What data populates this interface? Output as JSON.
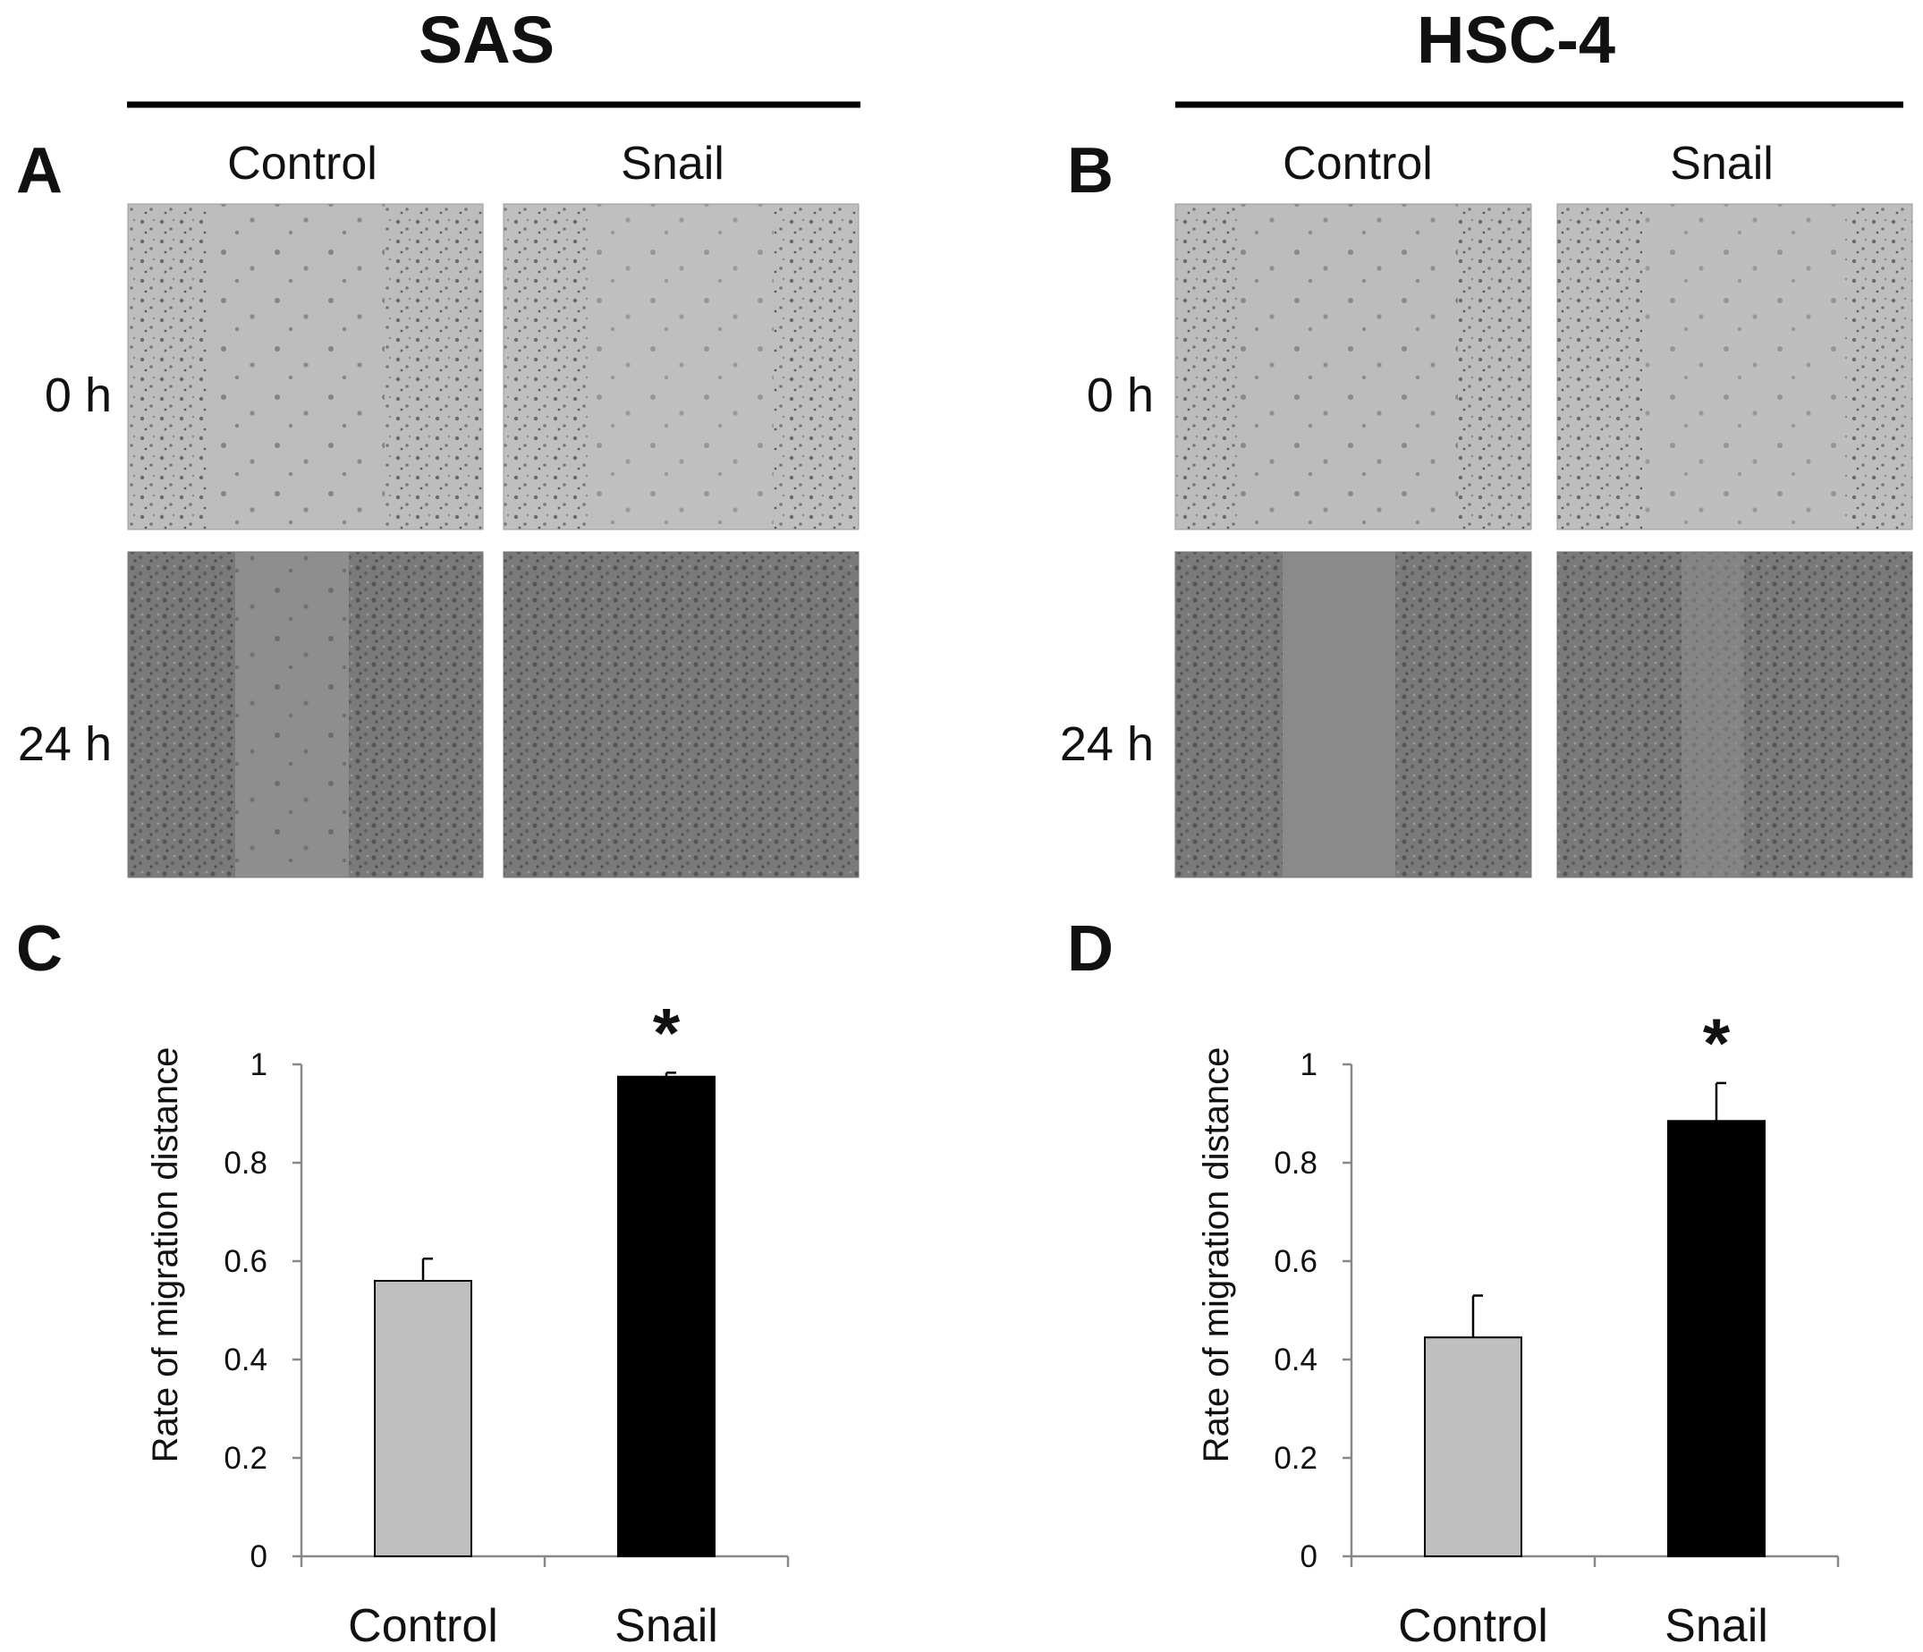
{
  "figure": {
    "groups": [
      {
        "panel_label": "A",
        "title": "SAS",
        "columns": [
          "Control",
          "Snail"
        ],
        "rows": [
          "0 h",
          "24 h"
        ]
      },
      {
        "panel_label": "B",
        "title": "HSC-4",
        "columns": [
          "Control",
          "Snail"
        ],
        "rows": [
          "0 h",
          "24 h"
        ]
      }
    ]
  },
  "chart_data": [
    {
      "panel_label": "C",
      "type": "bar",
      "categories": [
        "Control",
        "Snail"
      ],
      "values": [
        0.56,
        0.975
      ],
      "errors": [
        0.045,
        0.008
      ],
      "colors": [
        "#bfbfbf",
        "#000000"
      ],
      "significance": [
        "",
        "*"
      ],
      "ylabel": "Rate of migration distance",
      "xlabel": "",
      "ylim": [
        0,
        1
      ],
      "yticks": [
        0,
        0.2,
        0.4,
        0.6,
        0.8,
        1
      ],
      "ytick_labels": [
        "0",
        "0.2",
        "0.4",
        "0.6",
        "0.8",
        "1"
      ],
      "grid": false,
      "legend": "none"
    },
    {
      "panel_label": "D",
      "type": "bar",
      "categories": [
        "Control",
        "Snail"
      ],
      "values": [
        0.445,
        0.885
      ],
      "errors": [
        0.085,
        0.077
      ],
      "colors": [
        "#bfbfbf",
        "#000000"
      ],
      "significance": [
        "",
        "*"
      ],
      "ylabel": "Rate of migration distance",
      "xlabel": "",
      "ylim": [
        0,
        1
      ],
      "yticks": [
        0,
        0.2,
        0.4,
        0.6,
        0.8,
        1
      ],
      "ytick_labels": [
        "0",
        "0.2",
        "0.4",
        "0.6",
        "0.8",
        "1"
      ],
      "grid": false,
      "legend": "none"
    }
  ]
}
